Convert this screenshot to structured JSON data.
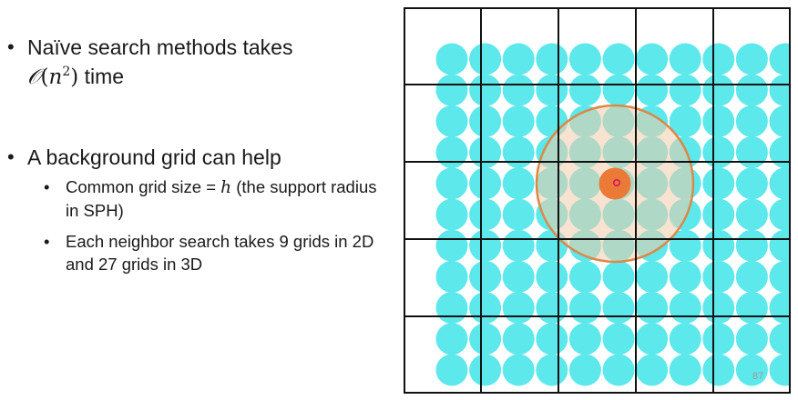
{
  "slide": {
    "bullets": [
      {
        "bullet_symbol": "•",
        "text_before": "Naïve search methods takes ",
        "math_O": "𝒪",
        "math_open": "(",
        "math_var": "n",
        "math_exp": "2",
        "math_close": ")",
        "text_after": " time"
      },
      {
        "bullet_symbol": "•",
        "text": "A background grid can help",
        "sub_bullets": [
          {
            "bullet_symbol": "•",
            "text_before": "Common grid size = ",
            "math_var": "h",
            "text_after": " (the support radius in SPH)"
          },
          {
            "bullet_symbol": "•",
            "text": "Each neighbor search takes 9 grids in 2D and 27 grids in 3D"
          }
        ]
      }
    ],
    "page_number": "87"
  },
  "figure": {
    "grid_cells": 5,
    "particle_rows": 11,
    "particle_cols": 11,
    "colors": {
      "particle": "#5de8ec",
      "grid_line": "#111111",
      "search_fill": "#f3cba9",
      "search_stroke": "#d98a48",
      "query_particle": "#ea7a35",
      "query_marker": "#d8136a"
    }
  }
}
